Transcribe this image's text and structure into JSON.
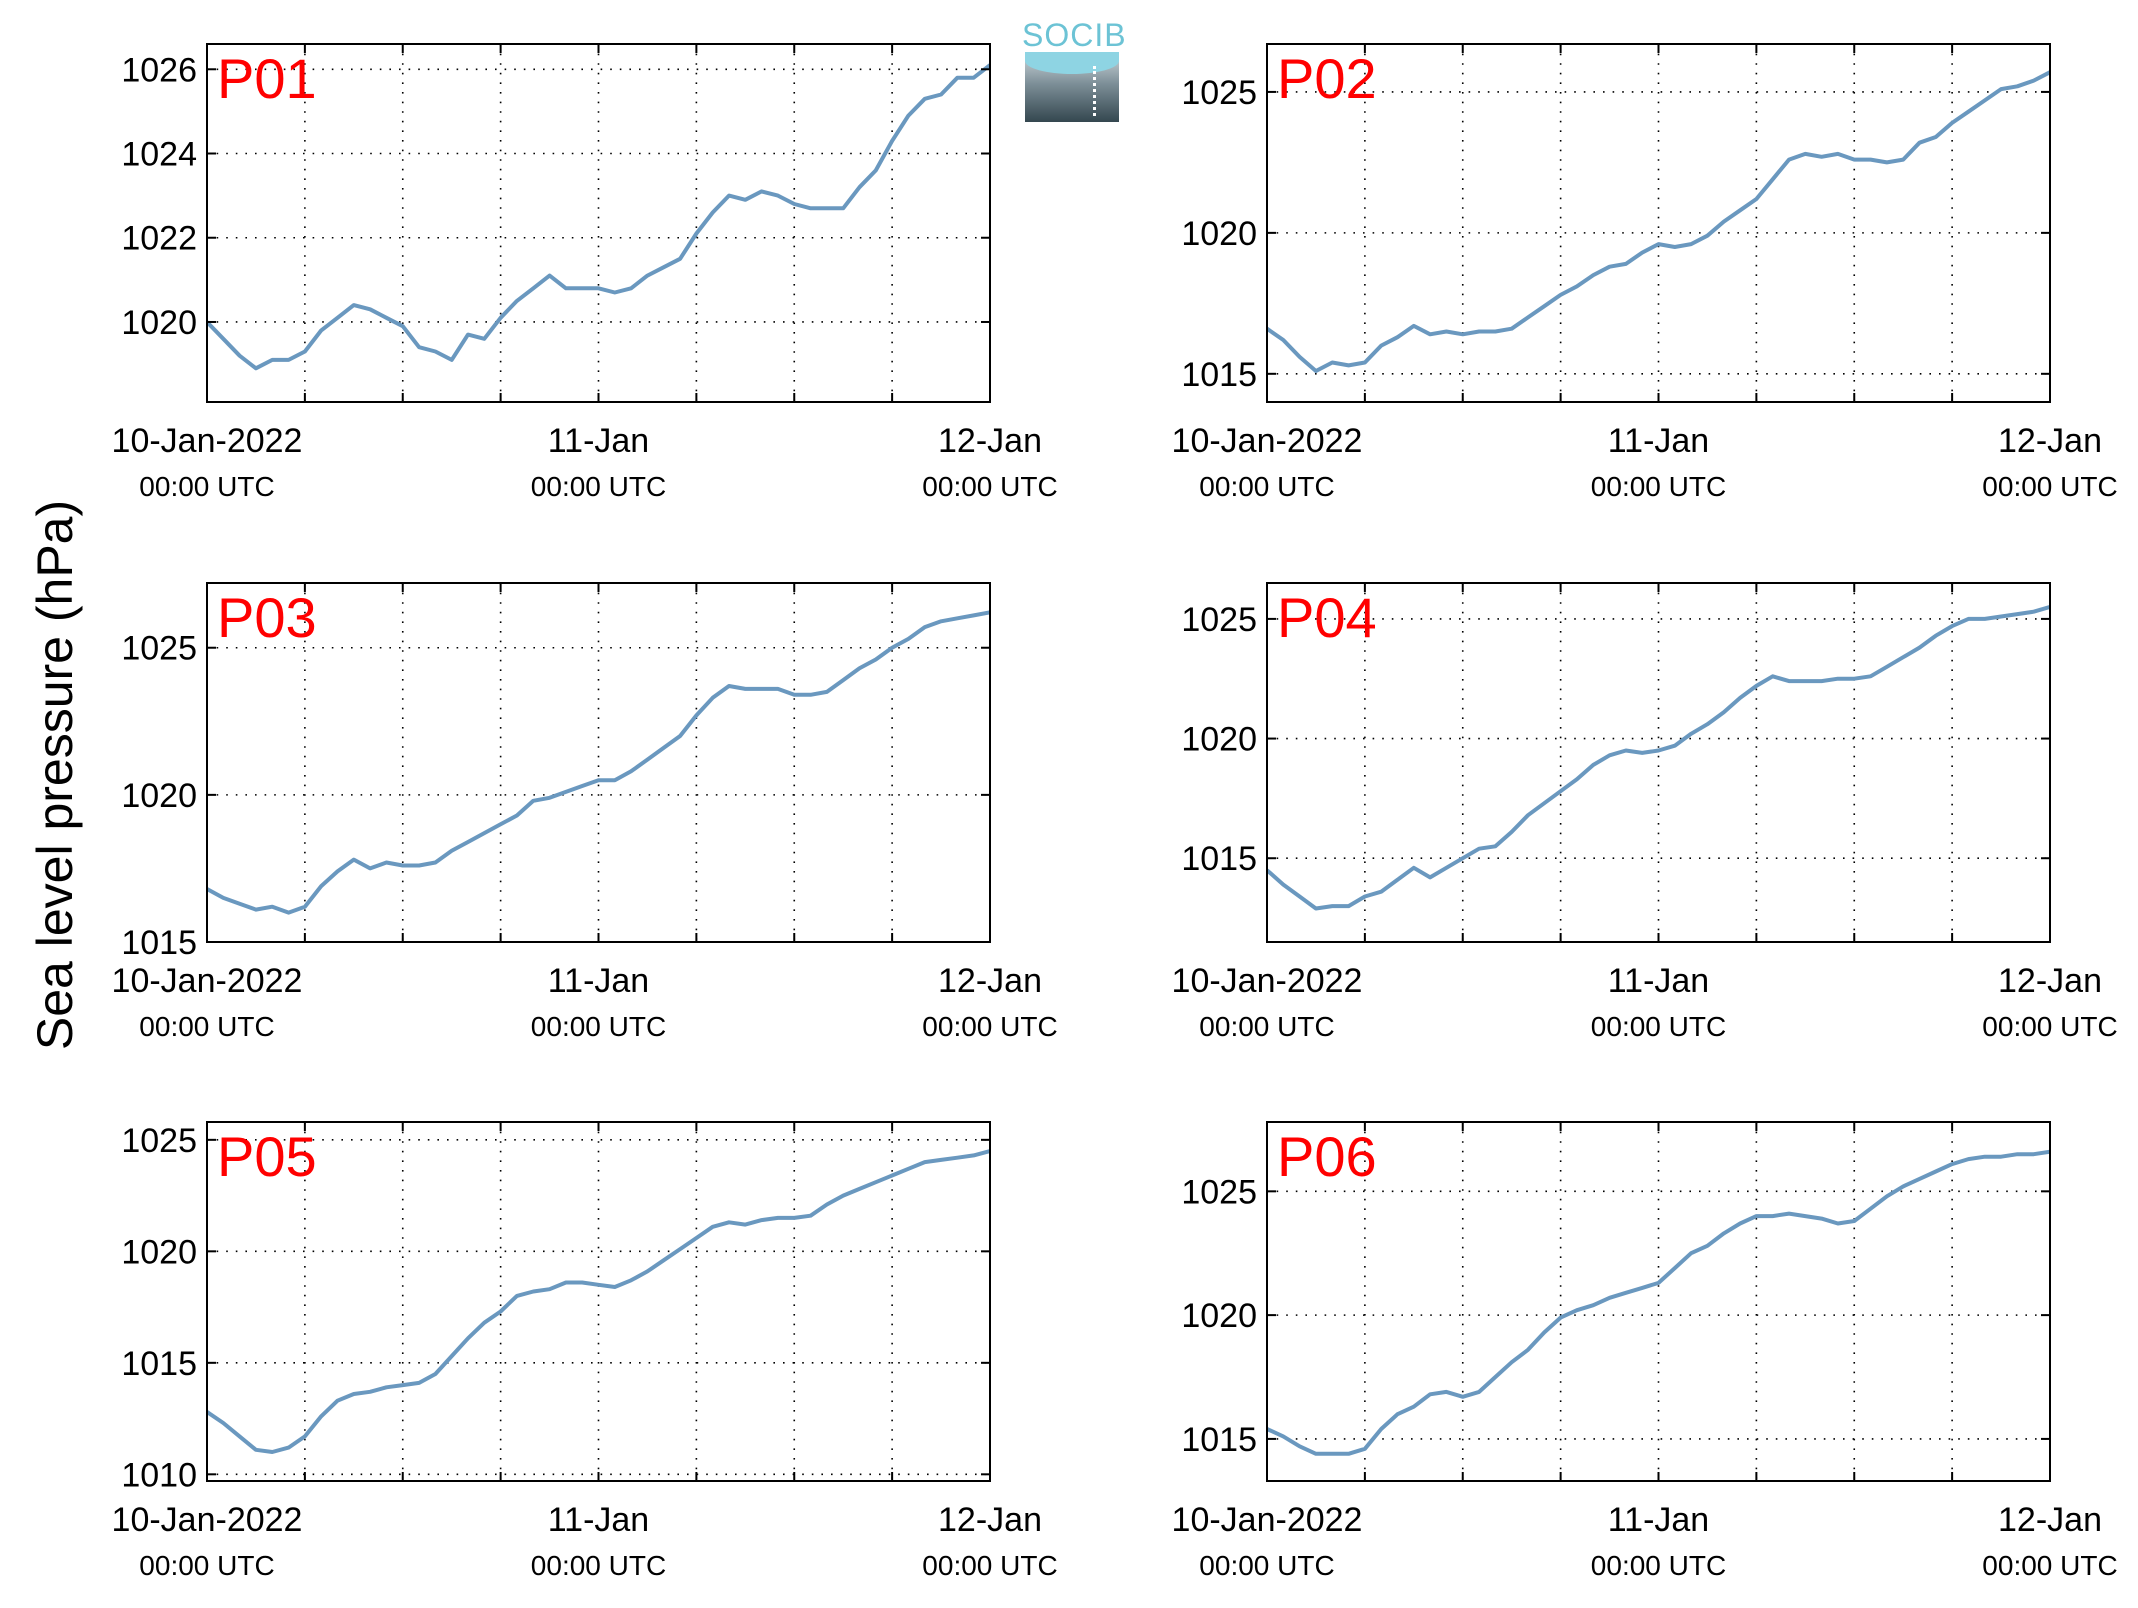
{
  "figure": {
    "ylabel": "Sea level pressure (hPa)",
    "logo_text": "SOCIB",
    "colors": {
      "line": "#6a98bf",
      "panel_label": "#ff0000",
      "axis": "#000000",
      "grid": "#000000"
    }
  },
  "chart_data": [
    {
      "type": "line",
      "panel_label": "P01",
      "x_tick_labels": [
        [
          "10-Jan-2022",
          "00:00 UTC"
        ],
        [
          "11-Jan",
          "00:00 UTC"
        ],
        [
          "12-Jan",
          "00:00 UTC"
        ]
      ],
      "x_tick_hours": [
        0,
        24,
        48
      ],
      "x_grid_hours": [
        0,
        6,
        12,
        18,
        24,
        30,
        36,
        42,
        48
      ],
      "xlim_hours": [
        0,
        48
      ],
      "ylim": [
        1018.1,
        1026.6
      ],
      "y_ticks": [
        1020,
        1022,
        1024,
        1026
      ],
      "grid": true,
      "series": [
        {
          "x_hours": [
            0,
            1,
            2,
            3,
            4,
            5,
            6,
            7,
            8,
            9,
            10,
            11,
            12,
            13,
            14,
            15,
            16,
            17,
            18,
            19,
            20,
            21,
            22,
            23,
            24,
            25,
            26,
            27,
            28,
            29,
            30,
            31,
            32,
            33,
            34,
            35,
            36,
            37,
            38,
            39,
            40,
            41,
            42,
            43,
            44,
            45,
            46,
            47,
            48
          ],
          "values": [
            1020.0,
            1019.6,
            1019.2,
            1018.9,
            1019.1,
            1019.1,
            1019.3,
            1019.8,
            1020.1,
            1020.4,
            1020.3,
            1020.1,
            1019.9,
            1019.4,
            1019.3,
            1019.1,
            1019.7,
            1019.6,
            1020.1,
            1020.5,
            1020.8,
            1021.1,
            1020.8,
            1020.8,
            1020.8,
            1020.7,
            1020.8,
            1021.1,
            1021.3,
            1021.5,
            1022.1,
            1022.6,
            1023.0,
            1022.9,
            1023.1,
            1023.0,
            1022.8,
            1022.7,
            1022.7,
            1022.7,
            1023.2,
            1023.6,
            1024.3,
            1024.9,
            1025.3,
            1025.4,
            1025.8,
            1025.8,
            1026.1
          ]
        }
      ]
    },
    {
      "type": "line",
      "panel_label": "P02",
      "x_tick_labels": [
        [
          "10-Jan-2022",
          "00:00 UTC"
        ],
        [
          "11-Jan",
          "00:00 UTC"
        ],
        [
          "12-Jan",
          "00:00 UTC"
        ]
      ],
      "x_tick_hours": [
        0,
        24,
        48
      ],
      "x_grid_hours": [
        0,
        6,
        12,
        18,
        24,
        30,
        36,
        42,
        48
      ],
      "xlim_hours": [
        0,
        48
      ],
      "ylim": [
        1014.0,
        1026.7
      ],
      "y_ticks": [
        1015,
        1020,
        1025
      ],
      "grid": true,
      "series": [
        {
          "x_hours": [
            0,
            1,
            2,
            3,
            4,
            5,
            6,
            7,
            8,
            9,
            10,
            11,
            12,
            13,
            14,
            15,
            16,
            17,
            18,
            19,
            20,
            21,
            22,
            23,
            24,
            25,
            26,
            27,
            28,
            29,
            30,
            31,
            32,
            33,
            34,
            35,
            36,
            37,
            38,
            39,
            40,
            41,
            42,
            43,
            44,
            45,
            46,
            47,
            48
          ],
          "values": [
            1016.6,
            1016.2,
            1015.6,
            1015.1,
            1015.4,
            1015.3,
            1015.4,
            1016.0,
            1016.3,
            1016.7,
            1016.4,
            1016.5,
            1016.4,
            1016.5,
            1016.5,
            1016.6,
            1017.0,
            1017.4,
            1017.8,
            1018.1,
            1018.5,
            1018.8,
            1018.9,
            1019.3,
            1019.6,
            1019.5,
            1019.6,
            1019.9,
            1020.4,
            1020.8,
            1021.2,
            1021.9,
            1022.6,
            1022.8,
            1022.7,
            1022.8,
            1022.6,
            1022.6,
            1022.5,
            1022.6,
            1023.2,
            1023.4,
            1023.9,
            1024.3,
            1024.7,
            1025.1,
            1025.2,
            1025.4,
            1025.7
          ]
        }
      ]
    },
    {
      "type": "line",
      "panel_label": "P03",
      "x_tick_labels": [
        [
          "10-Jan-2022",
          "00:00 UTC"
        ],
        [
          "11-Jan",
          "00:00 UTC"
        ],
        [
          "12-Jan",
          "00:00 UTC"
        ]
      ],
      "x_tick_hours": [
        0,
        24,
        48
      ],
      "x_grid_hours": [
        0,
        6,
        12,
        18,
        24,
        30,
        36,
        42,
        48
      ],
      "xlim_hours": [
        0,
        48
      ],
      "ylim": [
        1015.0,
        1027.2
      ],
      "y_ticks": [
        1015,
        1020,
        1025
      ],
      "grid": true,
      "series": [
        {
          "x_hours": [
            0,
            1,
            2,
            3,
            4,
            5,
            6,
            7,
            8,
            9,
            10,
            11,
            12,
            13,
            14,
            15,
            16,
            17,
            18,
            19,
            20,
            21,
            22,
            23,
            24,
            25,
            26,
            27,
            28,
            29,
            30,
            31,
            32,
            33,
            34,
            35,
            36,
            37,
            38,
            39,
            40,
            41,
            42,
            43,
            44,
            45,
            46,
            47,
            48
          ],
          "values": [
            1016.8,
            1016.5,
            1016.3,
            1016.1,
            1016.2,
            1016.0,
            1016.2,
            1016.9,
            1017.4,
            1017.8,
            1017.5,
            1017.7,
            1017.6,
            1017.6,
            1017.7,
            1018.1,
            1018.4,
            1018.7,
            1019.0,
            1019.3,
            1019.8,
            1019.9,
            1020.1,
            1020.3,
            1020.5,
            1020.5,
            1020.8,
            1021.2,
            1021.6,
            1022.0,
            1022.7,
            1023.3,
            1023.7,
            1023.6,
            1023.6,
            1023.6,
            1023.4,
            1023.4,
            1023.5,
            1023.9,
            1024.3,
            1024.6,
            1025.0,
            1025.3,
            1025.7,
            1025.9,
            1026.0,
            1026.1,
            1026.2
          ]
        }
      ]
    },
    {
      "type": "line",
      "panel_label": "P04",
      "x_tick_labels": [
        [
          "10-Jan-2022",
          "00:00 UTC"
        ],
        [
          "11-Jan",
          "00:00 UTC"
        ],
        [
          "12-Jan",
          "00:00 UTC"
        ]
      ],
      "x_tick_hours": [
        0,
        24,
        48
      ],
      "x_grid_hours": [
        0,
        6,
        12,
        18,
        24,
        30,
        36,
        42,
        48
      ],
      "xlim_hours": [
        0,
        48
      ],
      "ylim": [
        1011.5,
        1026.5
      ],
      "y_ticks": [
        1015,
        1020,
        1025
      ],
      "grid": true,
      "series": [
        {
          "x_hours": [
            0,
            1,
            2,
            3,
            4,
            5,
            6,
            7,
            8,
            9,
            10,
            11,
            12,
            13,
            14,
            15,
            16,
            17,
            18,
            19,
            20,
            21,
            22,
            23,
            24,
            25,
            26,
            27,
            28,
            29,
            30,
            31,
            32,
            33,
            34,
            35,
            36,
            37,
            38,
            39,
            40,
            41,
            42,
            43,
            44,
            45,
            46,
            47,
            48
          ],
          "values": [
            1014.5,
            1013.9,
            1013.4,
            1012.9,
            1013.0,
            1013.0,
            1013.4,
            1013.6,
            1014.1,
            1014.6,
            1014.2,
            1014.6,
            1015.0,
            1015.4,
            1015.5,
            1016.1,
            1016.8,
            1017.3,
            1017.8,
            1018.3,
            1018.9,
            1019.3,
            1019.5,
            1019.4,
            1019.5,
            1019.7,
            1020.2,
            1020.6,
            1021.1,
            1021.7,
            1022.2,
            1022.6,
            1022.4,
            1022.4,
            1022.4,
            1022.5,
            1022.5,
            1022.6,
            1023.0,
            1023.4,
            1023.8,
            1024.3,
            1024.7,
            1025.0,
            1025.0,
            1025.1,
            1025.2,
            1025.3,
            1025.5
          ]
        }
      ]
    },
    {
      "type": "line",
      "panel_label": "P05",
      "x_tick_labels": [
        [
          "10-Jan-2022",
          "00:00 UTC"
        ],
        [
          "11-Jan",
          "00:00 UTC"
        ],
        [
          "12-Jan",
          "00:00 UTC"
        ]
      ],
      "x_tick_hours": [
        0,
        24,
        48
      ],
      "x_grid_hours": [
        0,
        6,
        12,
        18,
        24,
        30,
        36,
        42,
        48
      ],
      "xlim_hours": [
        0,
        48
      ],
      "ylim": [
        1009.7,
        1025.8
      ],
      "y_ticks": [
        1010,
        1015,
        1020,
        1025
      ],
      "grid": true,
      "series": [
        {
          "x_hours": [
            0,
            1,
            2,
            3,
            4,
            5,
            6,
            7,
            8,
            9,
            10,
            11,
            12,
            13,
            14,
            15,
            16,
            17,
            18,
            19,
            20,
            21,
            22,
            23,
            24,
            25,
            26,
            27,
            28,
            29,
            30,
            31,
            32,
            33,
            34,
            35,
            36,
            37,
            38,
            39,
            40,
            41,
            42,
            43,
            44,
            45,
            46,
            47,
            48
          ],
          "values": [
            1012.8,
            1012.3,
            1011.7,
            1011.1,
            1011.0,
            1011.2,
            1011.7,
            1012.6,
            1013.3,
            1013.6,
            1013.7,
            1013.9,
            1014.0,
            1014.1,
            1014.5,
            1015.3,
            1016.1,
            1016.8,
            1017.3,
            1018.0,
            1018.2,
            1018.3,
            1018.6,
            1018.6,
            1018.5,
            1018.4,
            1018.7,
            1019.1,
            1019.6,
            1020.1,
            1020.6,
            1021.1,
            1021.3,
            1021.2,
            1021.4,
            1021.5,
            1021.5,
            1021.6,
            1022.1,
            1022.5,
            1022.8,
            1023.1,
            1023.4,
            1023.7,
            1024.0,
            1024.1,
            1024.2,
            1024.3,
            1024.5
          ]
        }
      ]
    },
    {
      "type": "line",
      "panel_label": "P06",
      "x_tick_labels": [
        [
          "10-Jan-2022",
          "00:00 UTC"
        ],
        [
          "11-Jan",
          "00:00 UTC"
        ],
        [
          "12-Jan",
          "00:00 UTC"
        ]
      ],
      "x_tick_hours": [
        0,
        24,
        48
      ],
      "x_grid_hours": [
        0,
        6,
        12,
        18,
        24,
        30,
        36,
        42,
        48
      ],
      "xlim_hours": [
        0,
        48
      ],
      "ylim": [
        1013.3,
        1027.8
      ],
      "y_ticks": [
        1015,
        1020,
        1025
      ],
      "grid": true,
      "series": [
        {
          "x_hours": [
            0,
            1,
            2,
            3,
            4,
            5,
            6,
            7,
            8,
            9,
            10,
            11,
            12,
            13,
            14,
            15,
            16,
            17,
            18,
            19,
            20,
            21,
            22,
            23,
            24,
            25,
            26,
            27,
            28,
            29,
            30,
            31,
            32,
            33,
            34,
            35,
            36,
            37,
            38,
            39,
            40,
            41,
            42,
            43,
            44,
            45,
            46,
            47,
            48
          ],
          "values": [
            1015.4,
            1015.1,
            1014.7,
            1014.4,
            1014.4,
            1014.4,
            1014.6,
            1015.4,
            1016.0,
            1016.3,
            1016.8,
            1016.9,
            1016.7,
            1016.9,
            1017.5,
            1018.1,
            1018.6,
            1019.3,
            1019.9,
            1020.2,
            1020.4,
            1020.7,
            1020.9,
            1021.1,
            1021.3,
            1021.9,
            1022.5,
            1022.8,
            1023.3,
            1023.7,
            1024.0,
            1024.0,
            1024.1,
            1024.0,
            1023.9,
            1023.7,
            1023.8,
            1024.3,
            1024.8,
            1025.2,
            1025.5,
            1025.8,
            1026.1,
            1026.3,
            1026.4,
            1026.4,
            1026.5,
            1026.5,
            1026.6
          ]
        }
      ]
    }
  ]
}
